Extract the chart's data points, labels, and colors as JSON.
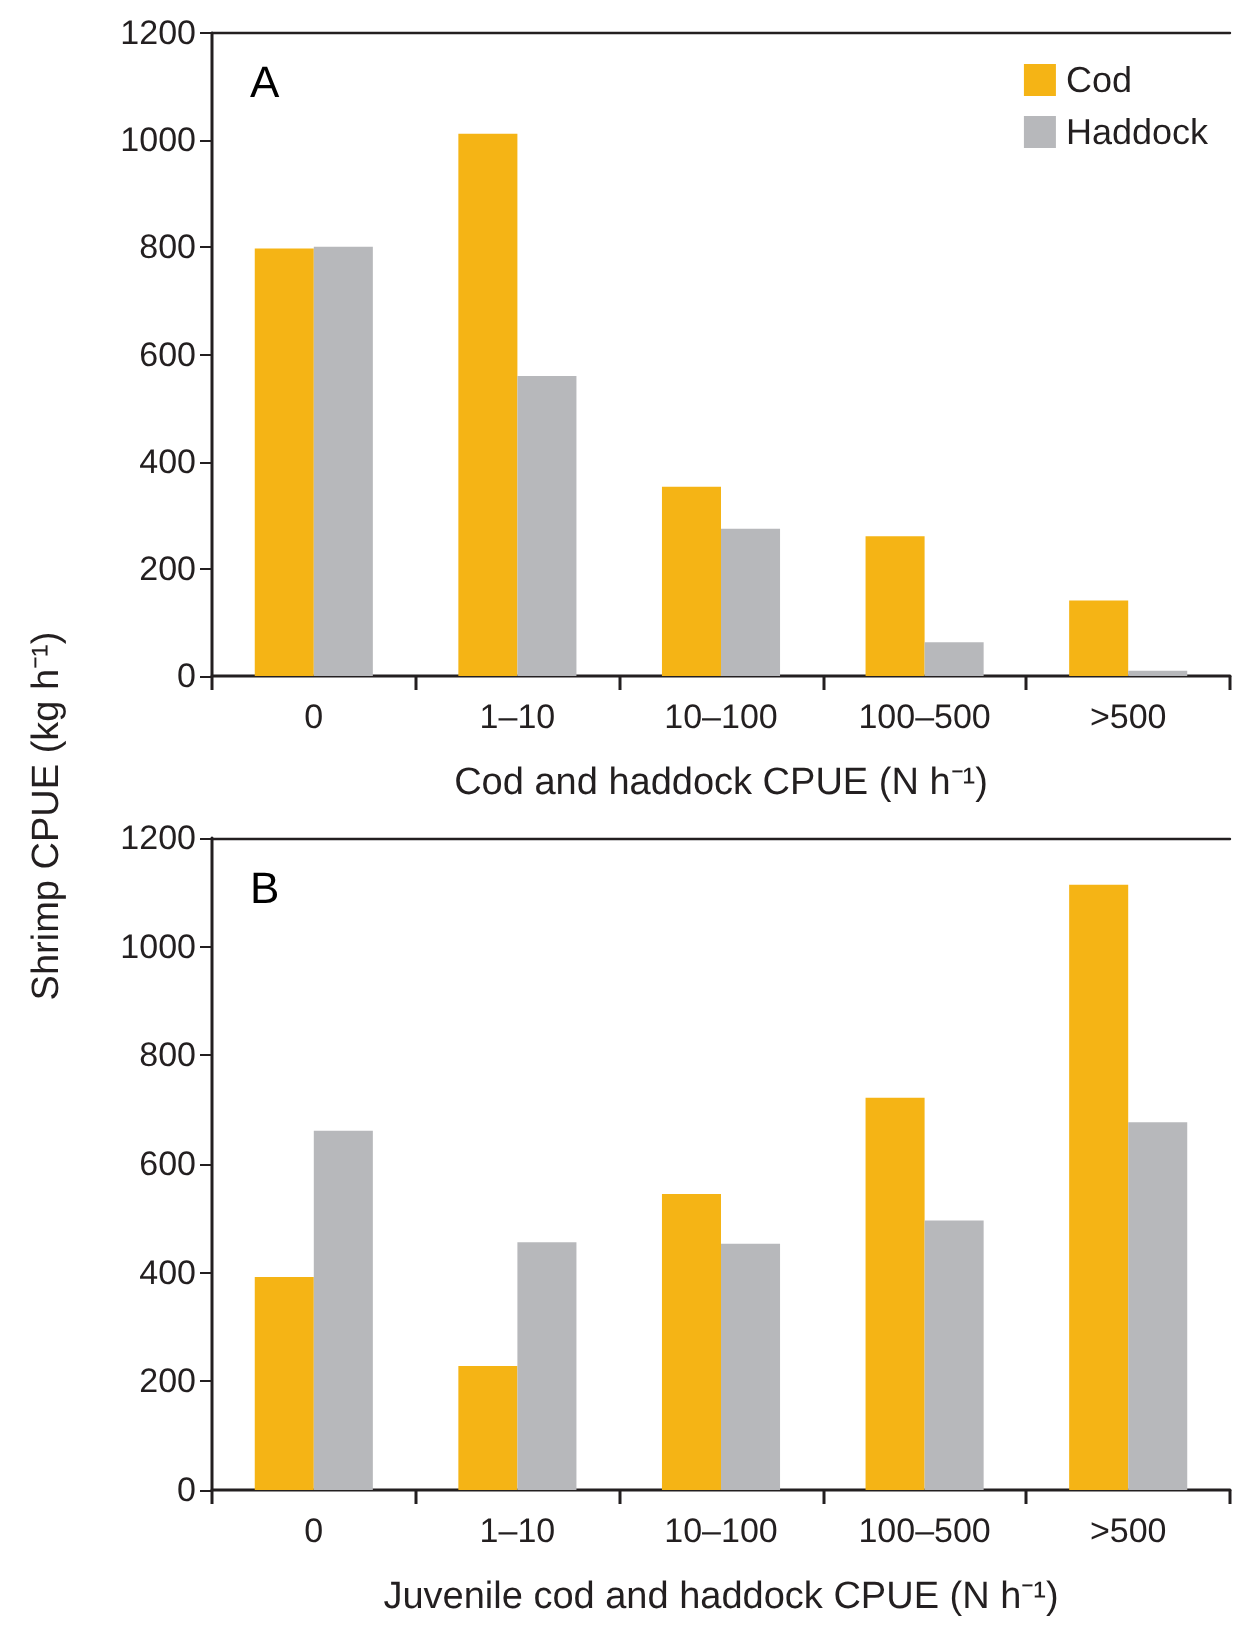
{
  "chart_data": [
    {
      "type": "bar",
      "categories": [
        "0",
        "1–10",
        "10–100",
        "100–500",
        ">500"
      ],
      "xlabel": "Cod and haddock CPUE (N h⁻¹)",
      "ylabel": "Shrimp CPUE (kg h⁻¹)",
      "annotations": [
        "A"
      ],
      "legend": "top right",
      "ylim": [
        0,
        1200
      ],
      "yticks": [
        0,
        200,
        400,
        600,
        800,
        1000,
        1200
      ],
      "series": [
        {
          "name": "Cod",
          "color": "#f5b415",
          "values": [
            798,
            1012,
            353,
            261,
            141
          ]
        },
        {
          "name": "Haddock",
          "color": "#b7b8bb",
          "values": [
            801,
            560,
            275,
            63,
            10
          ]
        }
      ]
    },
    {
      "type": "bar",
      "categories": [
        "0",
        "1–10",
        "10–100",
        "100–500",
        ">500"
      ],
      "xlabel": "Juvenile cod and haddock CPUE (N h⁻¹)",
      "annotations": [
        "B"
      ],
      "ylim": [
        0,
        1200
      ],
      "yticks": [
        0,
        200,
        400,
        600,
        800,
        1000,
        1200
      ],
      "series": [
        {
          "color": "#f5b415",
          "values": [
            392,
            228,
            545,
            722,
            1114
          ]
        },
        {
          "color": "#b7b8bb",
          "values": [
            661,
            456,
            453,
            496,
            677
          ]
        }
      ]
    }
  ]
}
